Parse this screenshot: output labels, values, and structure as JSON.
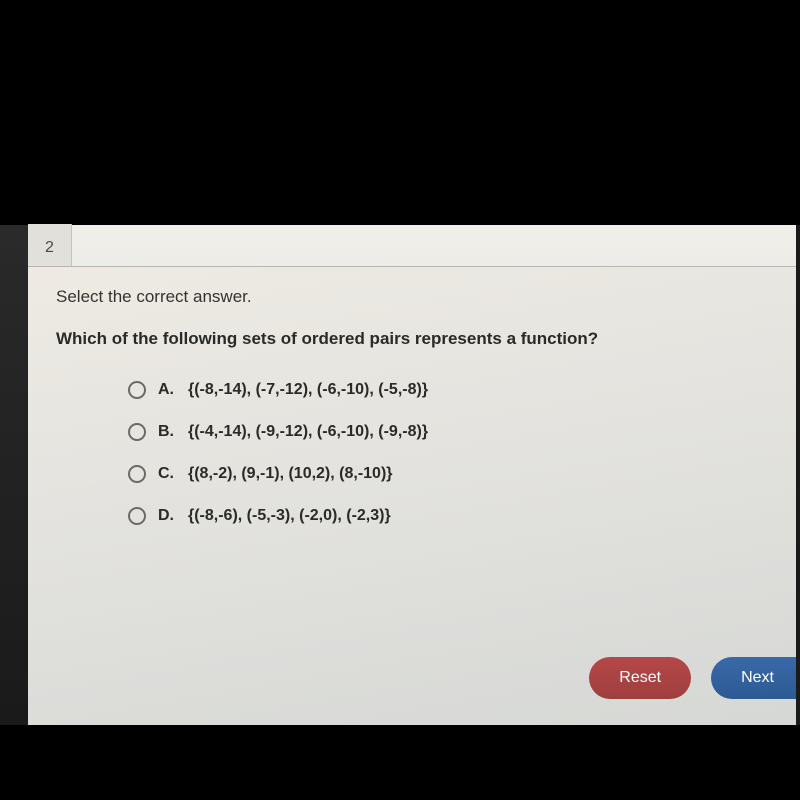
{
  "colors": {
    "page_bg": "#000000",
    "paper_bg_top": "#f0ece4",
    "paper_bg_bottom": "#d6d8d5",
    "text_primary": "#2a2a28",
    "text_secondary": "#333331",
    "radio_border": "#6a6a66",
    "reset_btn": "#a03e3e",
    "next_btn": "#2d5a93",
    "tab_bg": "#e2e0da"
  },
  "typography": {
    "body_fontsize": 17,
    "choice_fontsize": 16,
    "font_family": "sans-serif"
  },
  "tab": {
    "number": "2"
  },
  "question": {
    "instruction": "Select the correct answer.",
    "stem": "Which of the following sets of ordered pairs represents a function?",
    "choices": [
      {
        "letter": "A.",
        "text": "{(-8,-14), (-7,-12), (-6,-10), (-5,-8)}"
      },
      {
        "letter": "B.",
        "text": "{(-4,-14), (-9,-12), (-6,-10), (-9,-8)}"
      },
      {
        "letter": "C.",
        "text": "{(8,-2), (9,-1), (10,2), (8,-10)}"
      },
      {
        "letter": "D.",
        "text": "{(-8,-6), (-5,-3), (-2,0), (-2,3)}"
      }
    ]
  },
  "buttons": {
    "reset": "Reset",
    "next": "Next"
  }
}
